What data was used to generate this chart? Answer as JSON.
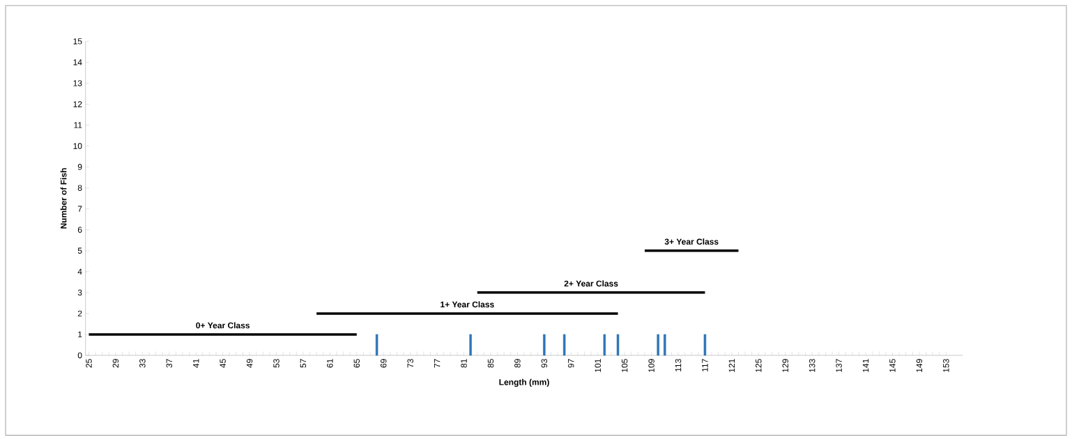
{
  "chart_data": {
    "type": "bar",
    "xlabel": "Length (mm)",
    "ylabel": "Number of Fish",
    "xlim": [
      24.5,
      155.5
    ],
    "ylim": [
      0,
      15
    ],
    "xticks": [
      25,
      29,
      33,
      37,
      41,
      45,
      49,
      53,
      57,
      61,
      65,
      69,
      73,
      77,
      81,
      85,
      89,
      93,
      97,
      101,
      105,
      109,
      113,
      117,
      121,
      125,
      129,
      133,
      137,
      141,
      145,
      149,
      153
    ],
    "yticks": [
      0,
      1,
      2,
      3,
      4,
      5,
      6,
      7,
      8,
      9,
      10,
      11,
      12,
      13,
      14,
      15
    ],
    "grid": false,
    "series": [
      {
        "color": "#2e75b6",
        "x": [
          68,
          82,
          93,
          96,
          102,
          104,
          110,
          111,
          117
        ],
        "values": [
          1,
          1,
          1,
          1,
          1,
          1,
          1,
          1,
          1
        ]
      },
      {
        "type": "line",
        "name": "0+ Year Class",
        "color": "#000000",
        "x": [
          25,
          65
        ],
        "values": [
          1,
          1
        ]
      },
      {
        "type": "line",
        "name": "1+ Year Class",
        "color": "#000000",
        "x": [
          59,
          104
        ],
        "values": [
          2,
          2
        ]
      },
      {
        "type": "line",
        "name": "2+ Year Class",
        "color": "#000000",
        "x": [
          83,
          117
        ],
        "values": [
          3,
          3
        ]
      },
      {
        "type": "line",
        "name": "3+ Year Class",
        "color": "#000000",
        "x": [
          108,
          122
        ],
        "values": [
          5,
          5
        ]
      }
    ]
  }
}
